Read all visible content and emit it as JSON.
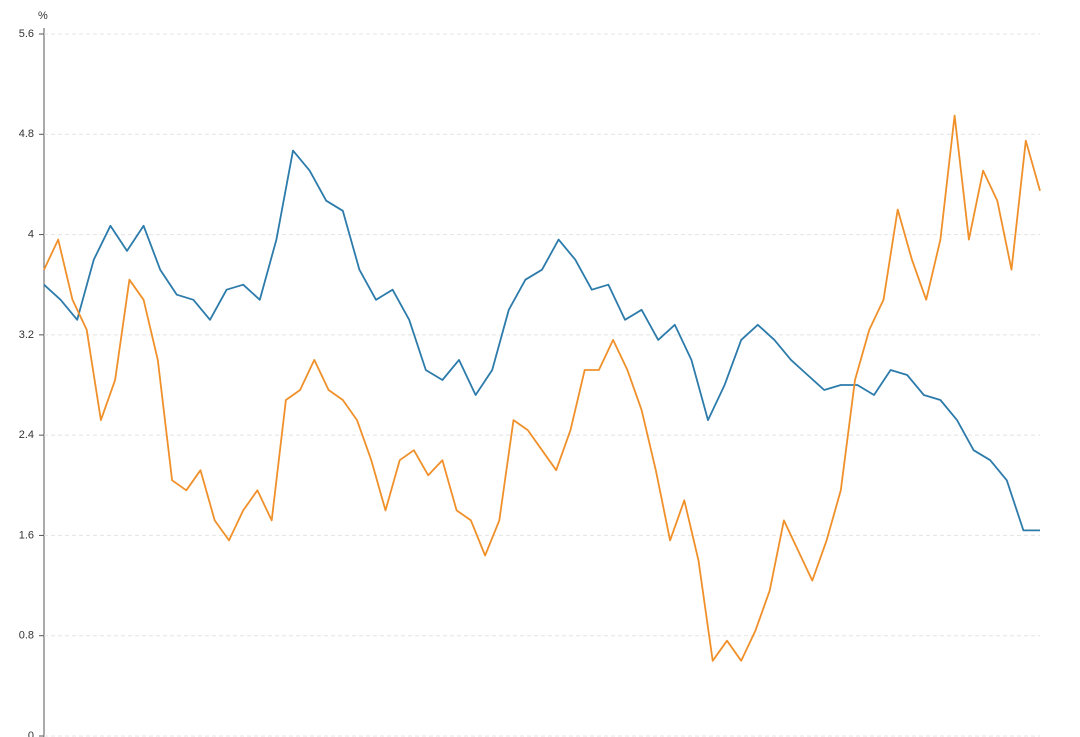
{
  "chart_data": {
    "type": "line",
    "y_label": "%",
    "ylim": [
      0,
      5.6
    ],
    "yticks": [
      0,
      0.8,
      1.6,
      2.4,
      3.2,
      4,
      4.8,
      5.6
    ],
    "grid": true,
    "series": [
      {
        "color": "#2c7bab",
        "values": [
          3.6,
          3.48,
          3.32,
          3.8,
          4.07,
          3.87,
          4.07,
          3.72,
          3.52,
          3.48,
          3.32,
          3.56,
          3.6,
          3.48,
          3.96,
          4.67,
          4.51,
          4.27,
          4.19,
          3.72,
          3.48,
          3.56,
          3.32,
          2.92,
          2.84,
          3.0,
          2.72,
          2.92,
          3.4,
          3.64,
          3.72,
          3.96,
          3.8,
          3.56,
          3.6,
          3.32,
          3.4,
          3.16,
          3.28,
          3.0,
          2.52,
          2.8,
          3.16,
          3.28,
          3.16,
          3.0,
          2.88,
          2.76,
          2.8,
          2.8,
          2.72,
          2.92,
          2.88,
          2.72,
          2.68,
          2.52,
          2.28,
          2.2,
          2.04,
          1.64,
          1.64
        ]
      },
      {
        "color": "#f0902a",
        "values": [
          3.72,
          3.96,
          3.48,
          3.24,
          2.52,
          2.84,
          3.64,
          3.48,
          3.0,
          2.04,
          1.96,
          2.12,
          1.72,
          1.56,
          1.8,
          1.96,
          1.72,
          2.68,
          2.76,
          3.0,
          2.76,
          2.68,
          2.52,
          2.2,
          1.8,
          2.2,
          2.28,
          2.08,
          2.2,
          1.8,
          1.72,
          1.44,
          1.72,
          2.52,
          2.44,
          2.28,
          2.12,
          2.44,
          2.92,
          2.92,
          3.16,
          2.92,
          2.6,
          2.12,
          1.56,
          1.88,
          1.4,
          0.6,
          0.76,
          0.6,
          0.84,
          1.16,
          1.72,
          1.48,
          1.24,
          1.56,
          1.96,
          2.84,
          3.24,
          3.48,
          4.2,
          3.8,
          3.48,
          3.96,
          4.95,
          3.96,
          4.51,
          4.27,
          3.72,
          4.75,
          4.35
        ]
      }
    ]
  }
}
